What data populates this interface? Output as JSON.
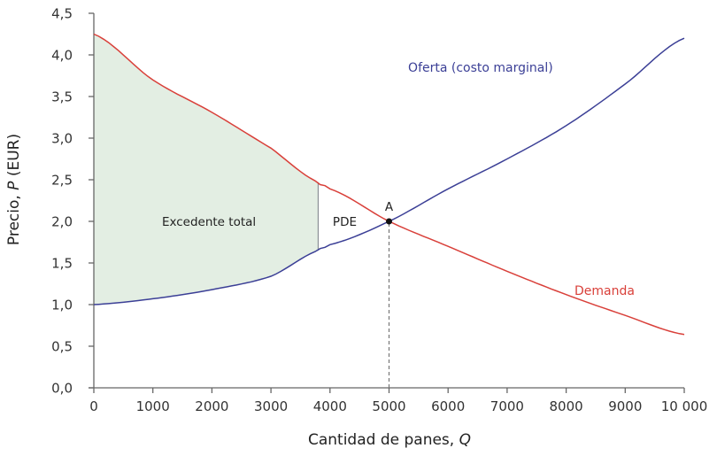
{
  "chart_data": {
    "type": "line",
    "title": "",
    "xlabel": "Cantidad de panes, Q",
    "ylabel": "Precio, P (EUR)",
    "xlim": [
      0,
      10000
    ],
    "ylim": [
      0,
      4.5
    ],
    "x_ticks": [
      0,
      1000,
      2000,
      3000,
      4000,
      5000,
      6000,
      7000,
      8000,
      9000,
      10000
    ],
    "x_tick_labels": [
      "0",
      "1000",
      "2000",
      "3000",
      "4000",
      "5000",
      "6000",
      "7000",
      "8000",
      "9000",
      "10 000"
    ],
    "y_ticks": [
      0,
      0.5,
      1.0,
      1.5,
      2.0,
      2.5,
      3.0,
      3.5,
      4.0,
      4.5
    ],
    "y_tick_labels": [
      "0,0",
      "0,5",
      "1,0",
      "1,5",
      "2,0",
      "2,5",
      "3,0",
      "3,5",
      "4,0",
      "4,5"
    ],
    "grid": false,
    "legend": "inline labels",
    "series": [
      {
        "name": "Oferta (costo marginal)",
        "color": "#3b3f96",
        "x": [
          0,
          1000,
          2000,
          3000,
          3800,
          4000,
          5000,
          6000,
          7000,
          8000,
          9000,
          10000
        ],
        "y": [
          1.0,
          1.07,
          1.18,
          1.34,
          1.65,
          1.72,
          2.0,
          2.39,
          2.75,
          3.15,
          3.65,
          4.2
        ]
      },
      {
        "name": "Demanda",
        "color": "#d9403a",
        "x": [
          0,
          1000,
          2000,
          3000,
          3800,
          4000,
          5000,
          6000,
          7000,
          8000,
          9000,
          10000
        ],
        "y": [
          4.25,
          3.7,
          3.31,
          2.88,
          2.47,
          2.39,
          2.0,
          1.7,
          1.4,
          1.12,
          0.87,
          0.64
        ]
      }
    ],
    "shaded_regions": [
      {
        "label": "Excedente total",
        "x_from": 0,
        "x_to": 3800,
        "between": [
          "Demanda",
          "Oferta (costo marginal)"
        ],
        "color": "#e3eee3"
      }
    ],
    "annotations": [
      {
        "text": "Excedente total",
        "x": 1950,
        "y": 2.0
      },
      {
        "text": "PDE",
        "x": 4250,
        "y": 2.0
      },
      {
        "text": "A",
        "x": 5000,
        "y": 2.18,
        "point": [
          5000,
          2.0
        ]
      },
      {
        "text": "Oferta (costo marginal)",
        "x": 6550,
        "y": 3.85
      },
      {
        "text": "Demanda",
        "x": 8650,
        "y": 1.17
      }
    ],
    "reference_lines": [
      {
        "type": "vertical-dashed",
        "x": 5000,
        "y_from": 0,
        "y_to": 2.0
      },
      {
        "type": "vertical-solid",
        "x": 3800,
        "y_from": 1.65,
        "y_to": 2.47
      }
    ]
  },
  "labels": {
    "x_axis_pre": "Cantidad de panes, ",
    "x_axis_var": "Q",
    "y_axis_pre": "Precio, ",
    "y_axis_var": "P",
    "y_axis_post": " (EUR)",
    "area_label": "Excedente total",
    "dwl_label": "PDE",
    "point_label": "A",
    "supply_label": "Oferta (costo marginal)",
    "demand_label": "Demanda"
  }
}
